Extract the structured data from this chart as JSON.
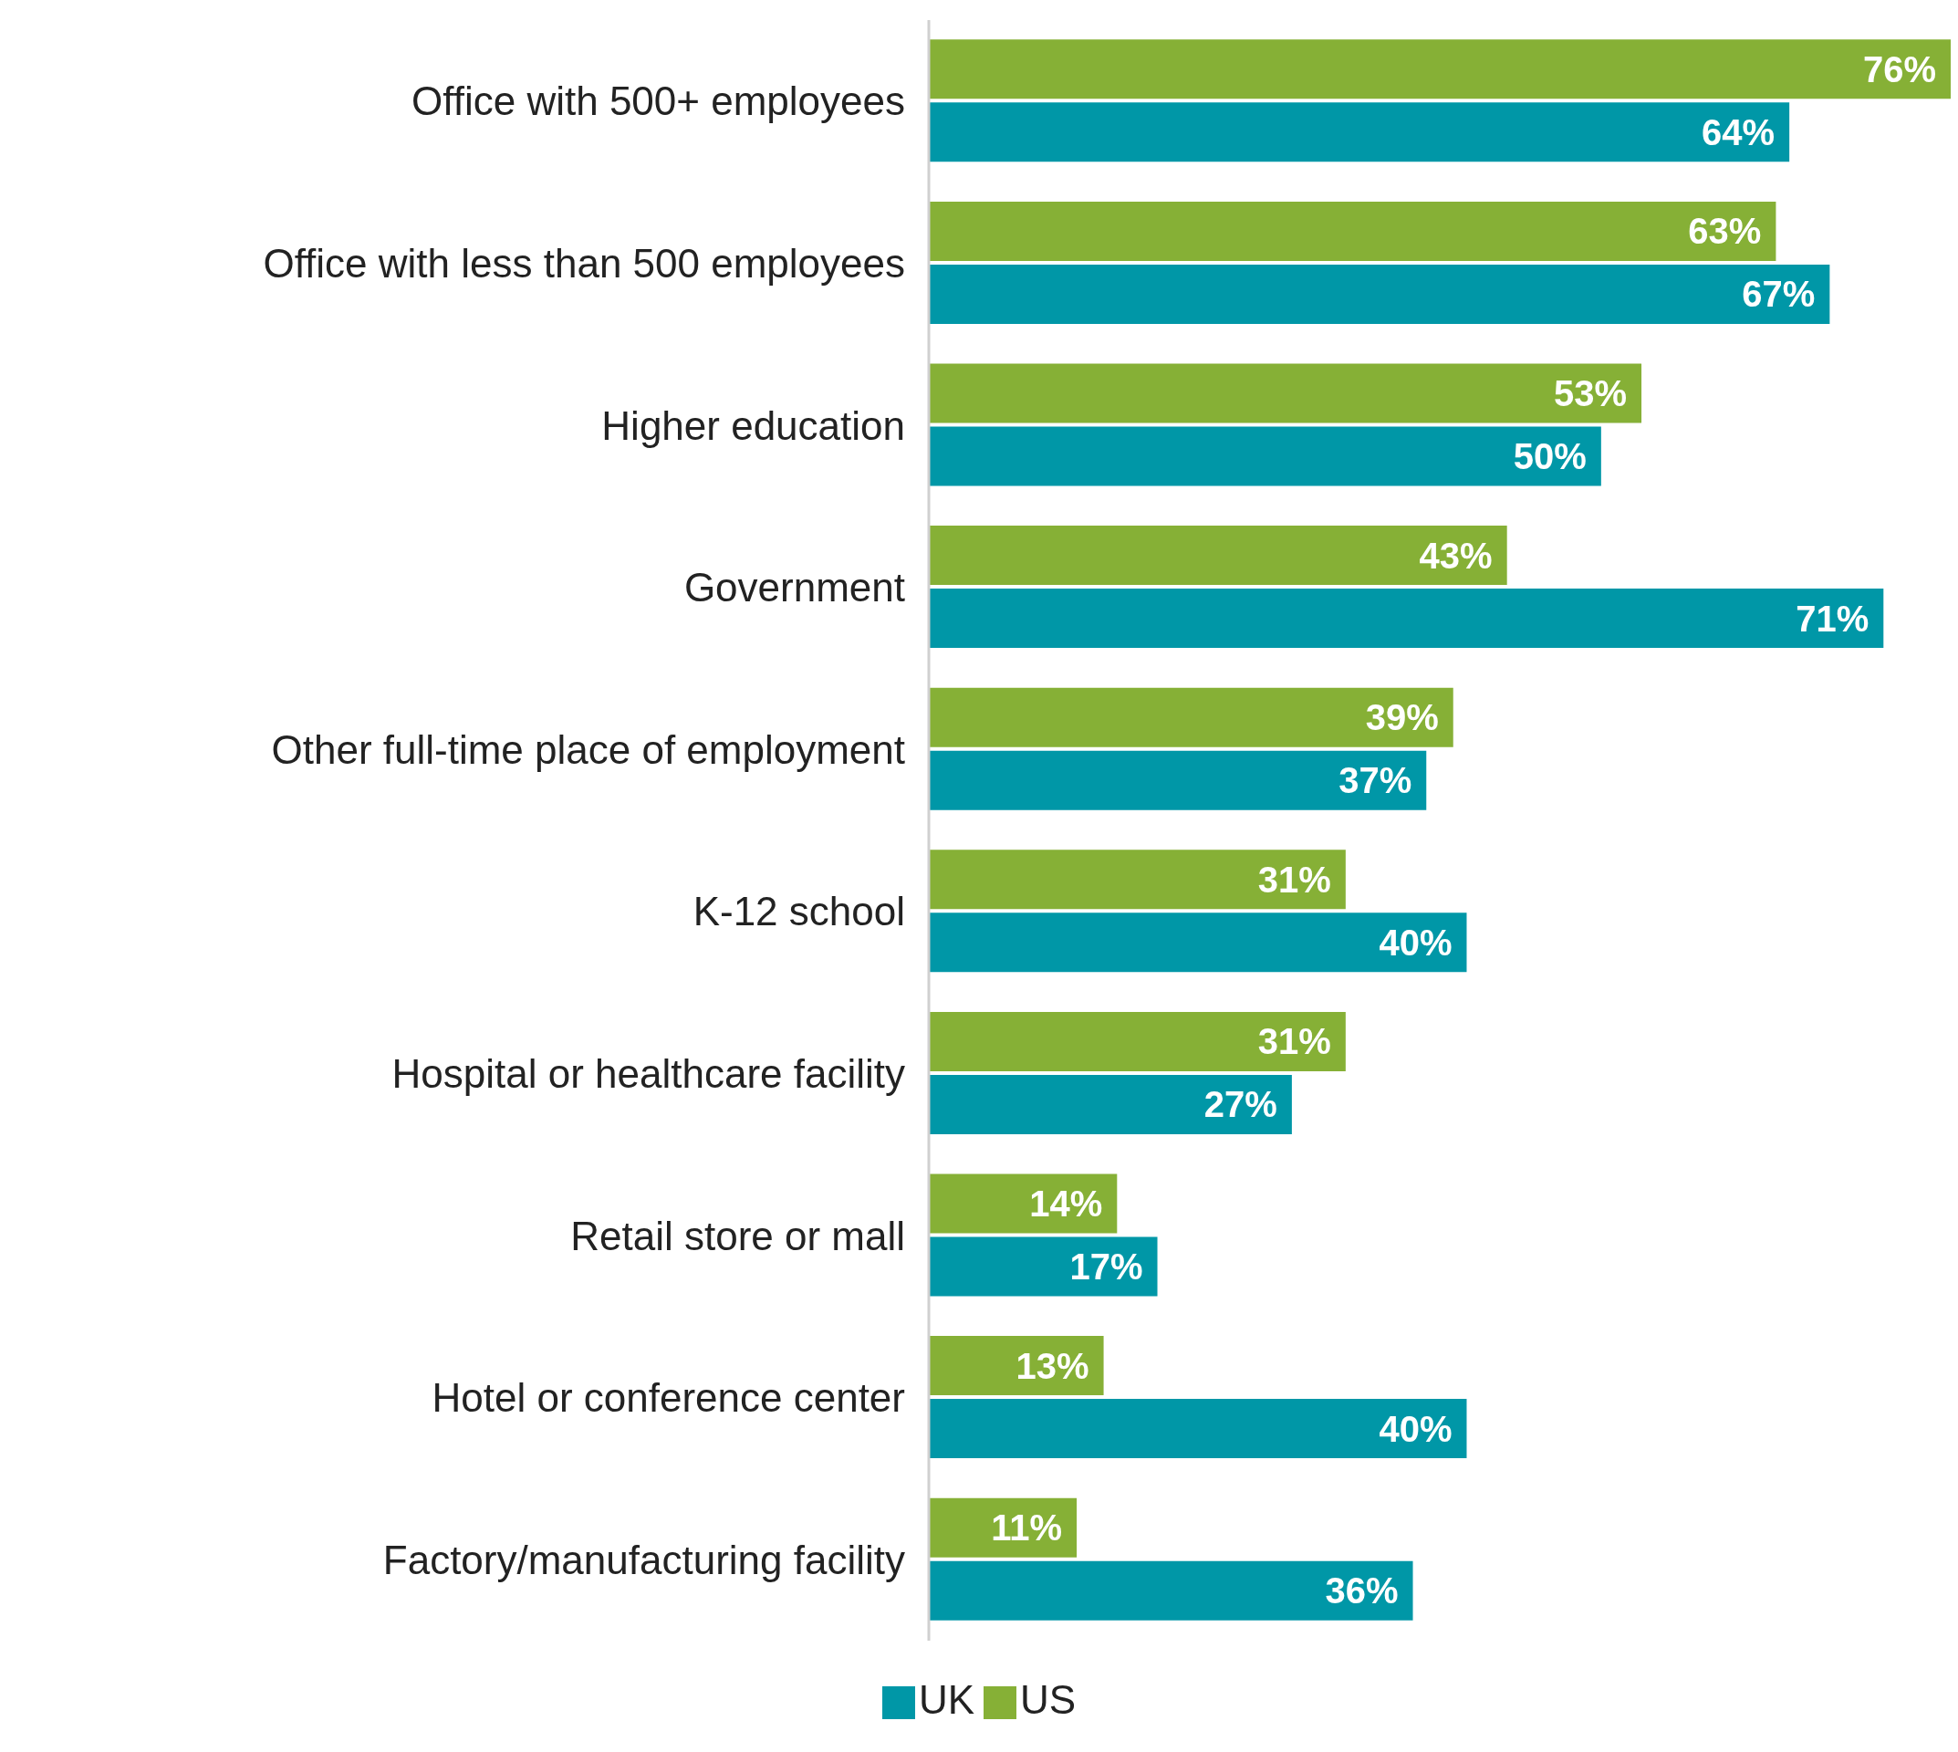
{
  "chart_data": {
    "type": "bar",
    "orientation": "horizontal",
    "categories": [
      "Office with 500+ employees",
      "Office with less than 500 employees",
      "Higher education",
      "Government",
      "Other full-time place of employment",
      "K-12 school",
      "Hospital or healthcare facility",
      "Retail store or mall",
      "Hotel or conference center",
      "Factory/manufacturing facility"
    ],
    "series": [
      {
        "name": "US",
        "color": "#86b036",
        "values": [
          76,
          63,
          53,
          43,
          39,
          31,
          31,
          14,
          13,
          11
        ],
        "value_labels": [
          "76%",
          "63%",
          "53%",
          "43%",
          "39%",
          "31%",
          "31%",
          "14%",
          "13%",
          "11%"
        ]
      },
      {
        "name": "UK",
        "color": "#0097a7",
        "values": [
          64,
          67,
          50,
          71,
          37,
          40,
          27,
          17,
          40,
          36
        ],
        "value_labels": [
          "64%",
          "67%",
          "50%",
          "71%",
          "37%",
          "40%",
          "27%",
          "17%",
          "40%",
          "36%"
        ]
      }
    ],
    "xlim": [
      0,
      76
    ],
    "tick_labels": "y",
    "legend": "bottom"
  }
}
